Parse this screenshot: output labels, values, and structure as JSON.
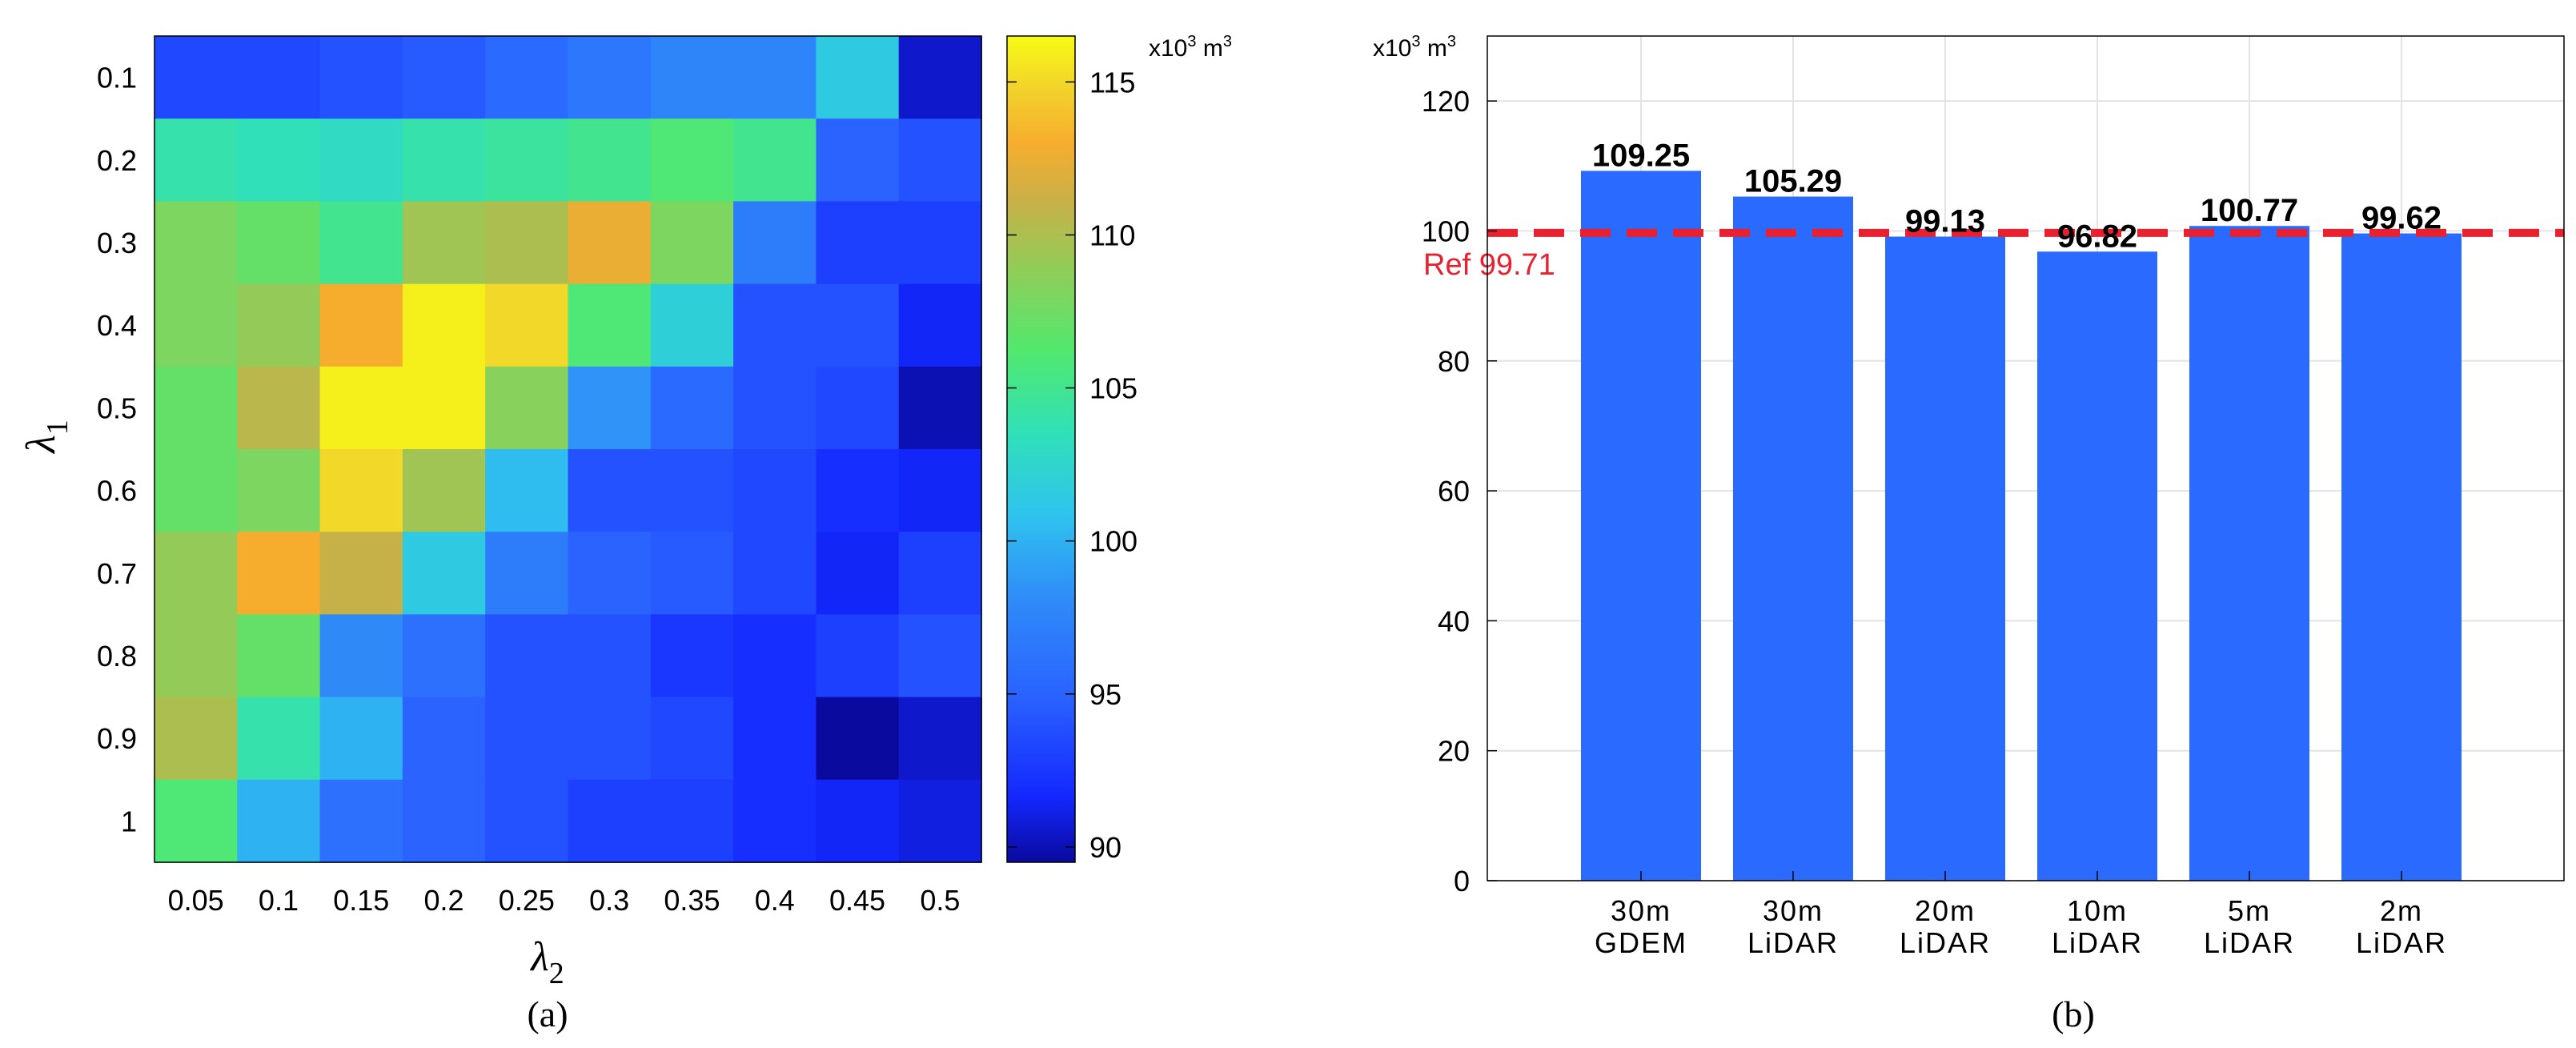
{
  "chart_data": [
    {
      "type": "heatmap",
      "panel_label": "(a)",
      "xlabel": "λ",
      "xlabel_sub": "2",
      "ylabel": "λ",
      "ylabel_sub": "1",
      "x_categories": [
        "0.05",
        "0.1",
        "0.15",
        "0.2",
        "0.25",
        "0.3",
        "0.35",
        "0.4",
        "0.45",
        "0.5"
      ],
      "y_categories": [
        "0.1",
        "0.2",
        "0.3",
        "0.4",
        "0.5",
        "0.6",
        "0.7",
        "0.8",
        "0.9",
        "1"
      ],
      "values": [
        [
          93.5,
          93.5,
          94.0,
          94.5,
          95.5,
          96.5,
          97.5,
          97.5,
          101.5,
          90.5
        ],
        [
          104.0,
          103.5,
          103.0,
          104.0,
          104.5,
          105.0,
          106.0,
          105.0,
          95.0,
          94.0
        ],
        [
          108.0,
          107.0,
          105.0,
          109.5,
          110.0,
          112.5,
          108.0,
          97.0,
          93.0,
          93.0
        ],
        [
          108.0,
          109.0,
          113.0,
          116.0,
          115.0,
          106.0,
          102.0,
          94.0,
          94.0,
          91.5
        ],
        [
          107.0,
          110.5,
          116.0,
          116.0,
          108.5,
          98.5,
          95.5,
          94.0,
          93.5,
          90.0
        ],
        [
          107.0,
          108.0,
          115.0,
          109.5,
          100.5,
          94.0,
          94.0,
          93.5,
          92.0,
          91.5
        ],
        [
          109.0,
          113.0,
          111.0,
          101.5,
          97.0,
          95.0,
          94.5,
          93.5,
          91.5,
          93.0
        ],
        [
          109.0,
          107.0,
          98.0,
          96.0,
          94.0,
          94.0,
          92.5,
          92.0,
          93.0,
          94.0
        ],
        [
          110.0,
          104.0,
          100.0,
          95.0,
          94.0,
          94.0,
          93.5,
          92.0,
          89.0,
          90.5
        ],
        [
          106.0,
          100.0,
          96.0,
          95.0,
          94.0,
          93.0,
          93.0,
          92.0,
          91.5,
          91.0
        ]
      ],
      "colorbar": {
        "min": 89.5,
        "max": 116.5,
        "ticks": [
          90,
          95,
          100,
          105,
          110,
          115
        ],
        "tick_labels": [
          "90",
          "95",
          "100",
          "105",
          "110",
          "115"
        ],
        "unit_prefix": "x10",
        "unit_exp1": "3",
        "unit_mid": " m",
        "unit_exp2": "3"
      }
    },
    {
      "type": "bar",
      "panel_label": "(b)",
      "unit_prefix": "x10",
      "unit_exp1": "3",
      "unit_mid": " m",
      "unit_exp2": "3",
      "ylim": [
        0,
        130
      ],
      "yticks": [
        0,
        20,
        40,
        60,
        80,
        100,
        120
      ],
      "ytick_labels": [
        "0",
        "20",
        "40",
        "60",
        "80",
        "100",
        "120"
      ],
      "grid": true,
      "categories": [
        {
          "line1": "30m",
          "line2": "GDEM"
        },
        {
          "line1": "30m",
          "line2": "LiDAR"
        },
        {
          "line1": "20m",
          "line2": "LiDAR"
        },
        {
          "line1": "10m",
          "line2": "LiDAR"
        },
        {
          "line1": "5m",
          "line2": "LiDAR"
        },
        {
          "line1": "2m",
          "line2": "LiDAR"
        }
      ],
      "values": [
        109.25,
        105.29,
        99.13,
        96.82,
        100.77,
        99.62
      ],
      "value_labels": [
        "109.25",
        "105.29",
        "99.13",
        "96.82",
        "100.77",
        "99.62"
      ],
      "bar_color": "#2b6aff",
      "reference": {
        "value": 99.71,
        "label": "Ref 99.71",
        "color": "#e8202f"
      }
    }
  ]
}
